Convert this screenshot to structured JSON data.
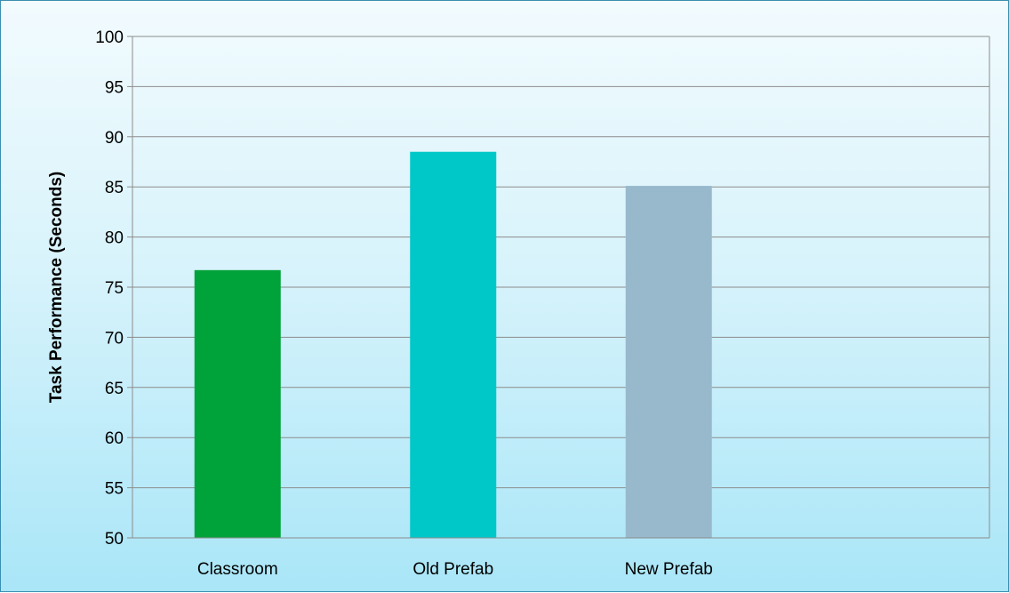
{
  "chart_data": {
    "type": "bar",
    "title": "",
    "xlabel": "",
    "ylabel": "Task Performance (Seconds)",
    "categories": [
      "Classroom",
      "Old Prefab",
      "New Prefab"
    ],
    "values": [
      76.7,
      88.5,
      85.1
    ],
    "colors": [
      "#00a23a",
      "#00c8c8",
      "#98b9cc"
    ],
    "ylim": [
      50,
      100
    ],
    "yticks": [
      50,
      55,
      60,
      65,
      70,
      75,
      80,
      85,
      90,
      95,
      100
    ],
    "grid": true,
    "legend": "none"
  }
}
